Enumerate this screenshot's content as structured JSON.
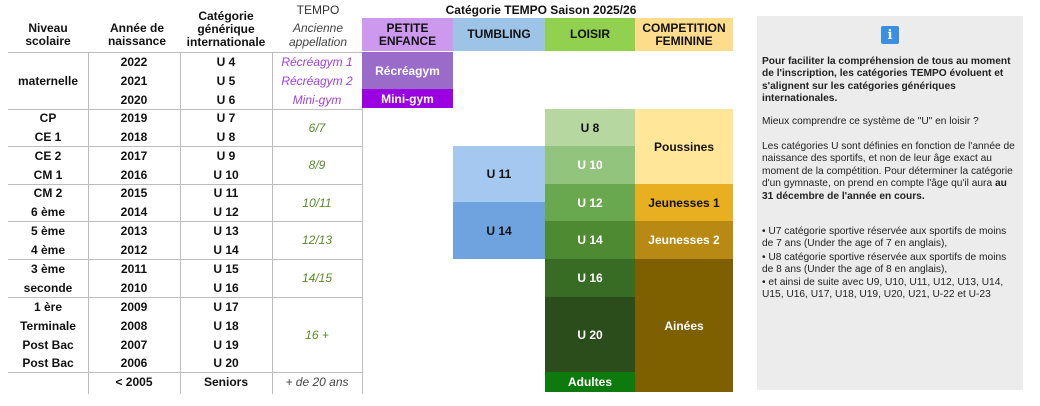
{
  "headers": {
    "niveau": "Niveau scolaire",
    "annee": "Année de naissance",
    "categorie": "Catégorie générique internationale",
    "tempo": "TEMPO",
    "ancienne": "Ancienne appellation",
    "saison": "Catégorie TEMPO Saison 2025/26",
    "petite_enfance": "PETITE ENFANCE",
    "tumbling": "TUMBLING",
    "loisir": "LOISIR",
    "competition": "COMPETITION FEMININE"
  },
  "rows": [
    {
      "annee": "2022",
      "cat": "U 4"
    },
    {
      "annee": "2021",
      "cat": "U 5"
    },
    {
      "annee": "2020",
      "cat": "U 6"
    },
    {
      "niveau": "CP",
      "annee": "2019",
      "cat": "U 7"
    },
    {
      "niveau": "CE 1",
      "annee": "2018",
      "cat": "U 8"
    },
    {
      "niveau": "CE 2",
      "annee": "2017",
      "cat": "U 9"
    },
    {
      "niveau": "CM 1",
      "annee": "2016",
      "cat": "U 10"
    },
    {
      "niveau": "CM 2",
      "annee": "2015",
      "cat": "U 11"
    },
    {
      "niveau": "6 ème",
      "annee": "2014",
      "cat": "U 12"
    },
    {
      "niveau": "5 ème",
      "annee": "2013",
      "cat": "U 13"
    },
    {
      "niveau": "4 ème",
      "annee": "2012",
      "cat": "U 14"
    },
    {
      "niveau": "3 ème",
      "annee": "2011",
      "cat": "U 15"
    },
    {
      "niveau": "seconde",
      "annee": "2010",
      "cat": "U 16"
    },
    {
      "niveau": "1 ère",
      "annee": "2009",
      "cat": "U 17"
    },
    {
      "niveau": "Terminale",
      "annee": "2008",
      "cat": "U 18"
    },
    {
      "niveau": "Post Bac",
      "annee": "2007",
      "cat": "U 19"
    },
    {
      "niveau": "Post Bac",
      "annee": "2006",
      "cat": "U 20"
    },
    {
      "annee": "< 2005",
      "cat": "Seniors"
    }
  ],
  "maternelle": "maternelle",
  "tempo_names": {
    "recreagym1": "Récréagym 1",
    "recreagym2": "Récréagym 2",
    "minigym_old": "Mini-gym",
    "r67": "6/7",
    "r89": "8/9",
    "r1011": "10/11",
    "r1213": "12/13",
    "r1415": "14/15",
    "r16": "16 +",
    "r20": "+ de 20 ans"
  },
  "petite_enfance": {
    "recreagym": "Récréagym",
    "minigym": "Mini-gym"
  },
  "tumbling": {
    "u11": "U 11",
    "u14": "U 14"
  },
  "loisir": {
    "u8": "U 8",
    "u10": "U 10",
    "u12": "U 12",
    "u14": "U 14",
    "u16": "U 16",
    "u20": "U 20",
    "adultes": "Adultes"
  },
  "competition": {
    "poussines": "Poussines",
    "jeunesses1": "Jeunesses 1",
    "jeunesses2": "Jeunesses 2",
    "ainees": "Ainées"
  },
  "panel": {
    "icon": "info-icon",
    "intro": "Pour faciliter la compréhension de tous au moment de l'inscription, les catégories TEMPO évoluent et s'alignent sur les catégories génériques internationales.",
    "question": "Mieux comprendre ce système de \"U\" en loisir ?",
    "para1_a": "Les catégories U sont définies en fonction de l'année de naissance des sportifs, et non de leur âge exact au moment de la compétition. Pour déterminer la catégorie d'un gymnaste, on prend en compte l'âge qu'il aura",
    "para1_b": "au 31 décembre de l'année en cours.",
    "b1": "• U7 catégorie sportive réservée aux sportifs de moins de 7 ans (Under the age of 7 en anglais),",
    "b2": "• U8 catégorie sportive réservée aux sportifs de moins de 8 ans (Under the age of 8 en anglais),",
    "b3": "• et ainsi de suite avec U9, U10, U11, U12, U13, U14, U15, U16, U17, U18, U19, U20, U21, U-22 et U-23"
  },
  "colors": {
    "petite_enfance_header": "#cc99ee",
    "recreagym": "#9a6bc9",
    "minigym": "#9b00e0",
    "tumbling_header": "#9dc3e6",
    "tumbling_u11": "#a4c8f0",
    "tumbling_u14": "#6fa3e0",
    "loisir_header": "#92d050",
    "competition_header": "#fddc8c",
    "poussines": "#ffe699",
    "jeunesses": "#e8b020",
    "ainees": "#7f6000"
  }
}
